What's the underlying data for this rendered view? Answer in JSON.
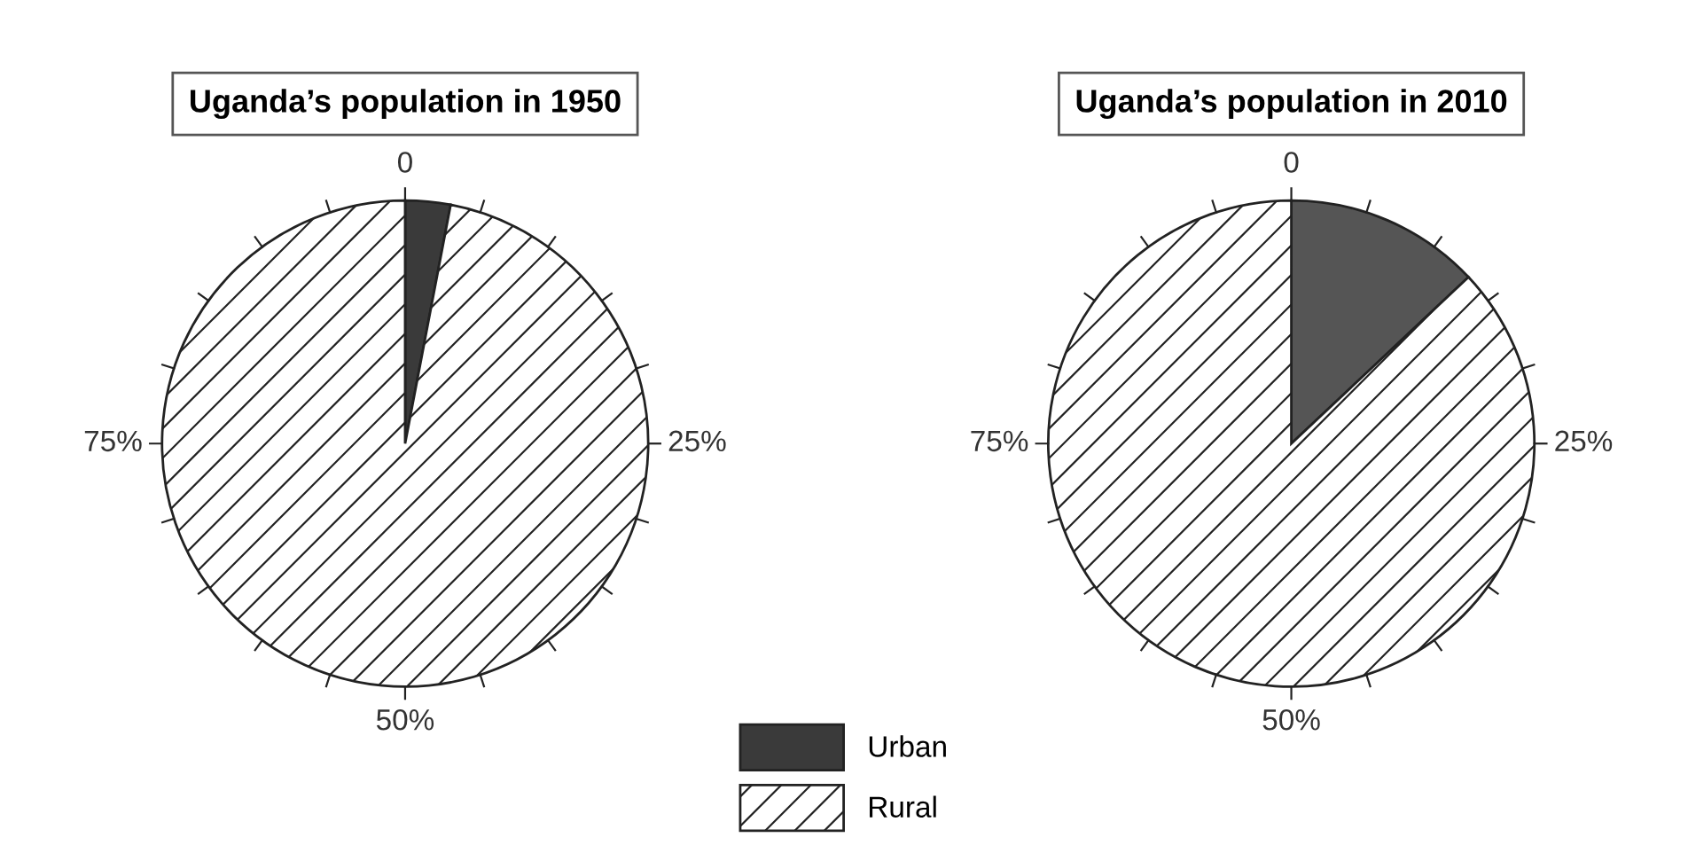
{
  "chart_data": [
    {
      "type": "pie",
      "title": "Uganda’s population in 1950",
      "categories": [
        "Urban",
        "Rural"
      ],
      "values": [
        3,
        97
      ],
      "colors": [
        "#3a3a3a",
        "#ffffff"
      ],
      "annotations": [
        "0",
        "25%",
        "50%",
        "75%"
      ],
      "legend": "bottom"
    },
    {
      "type": "pie",
      "title": "Uganda’s population in 2010",
      "categories": [
        null,
        null
      ],
      "values": [
        13,
        87
      ],
      "colors": [
        "#555555",
        "#ffffff"
      ],
      "annotations": [
        "0",
        "25%",
        "50%",
        "75%"
      ]
    }
  ]
}
